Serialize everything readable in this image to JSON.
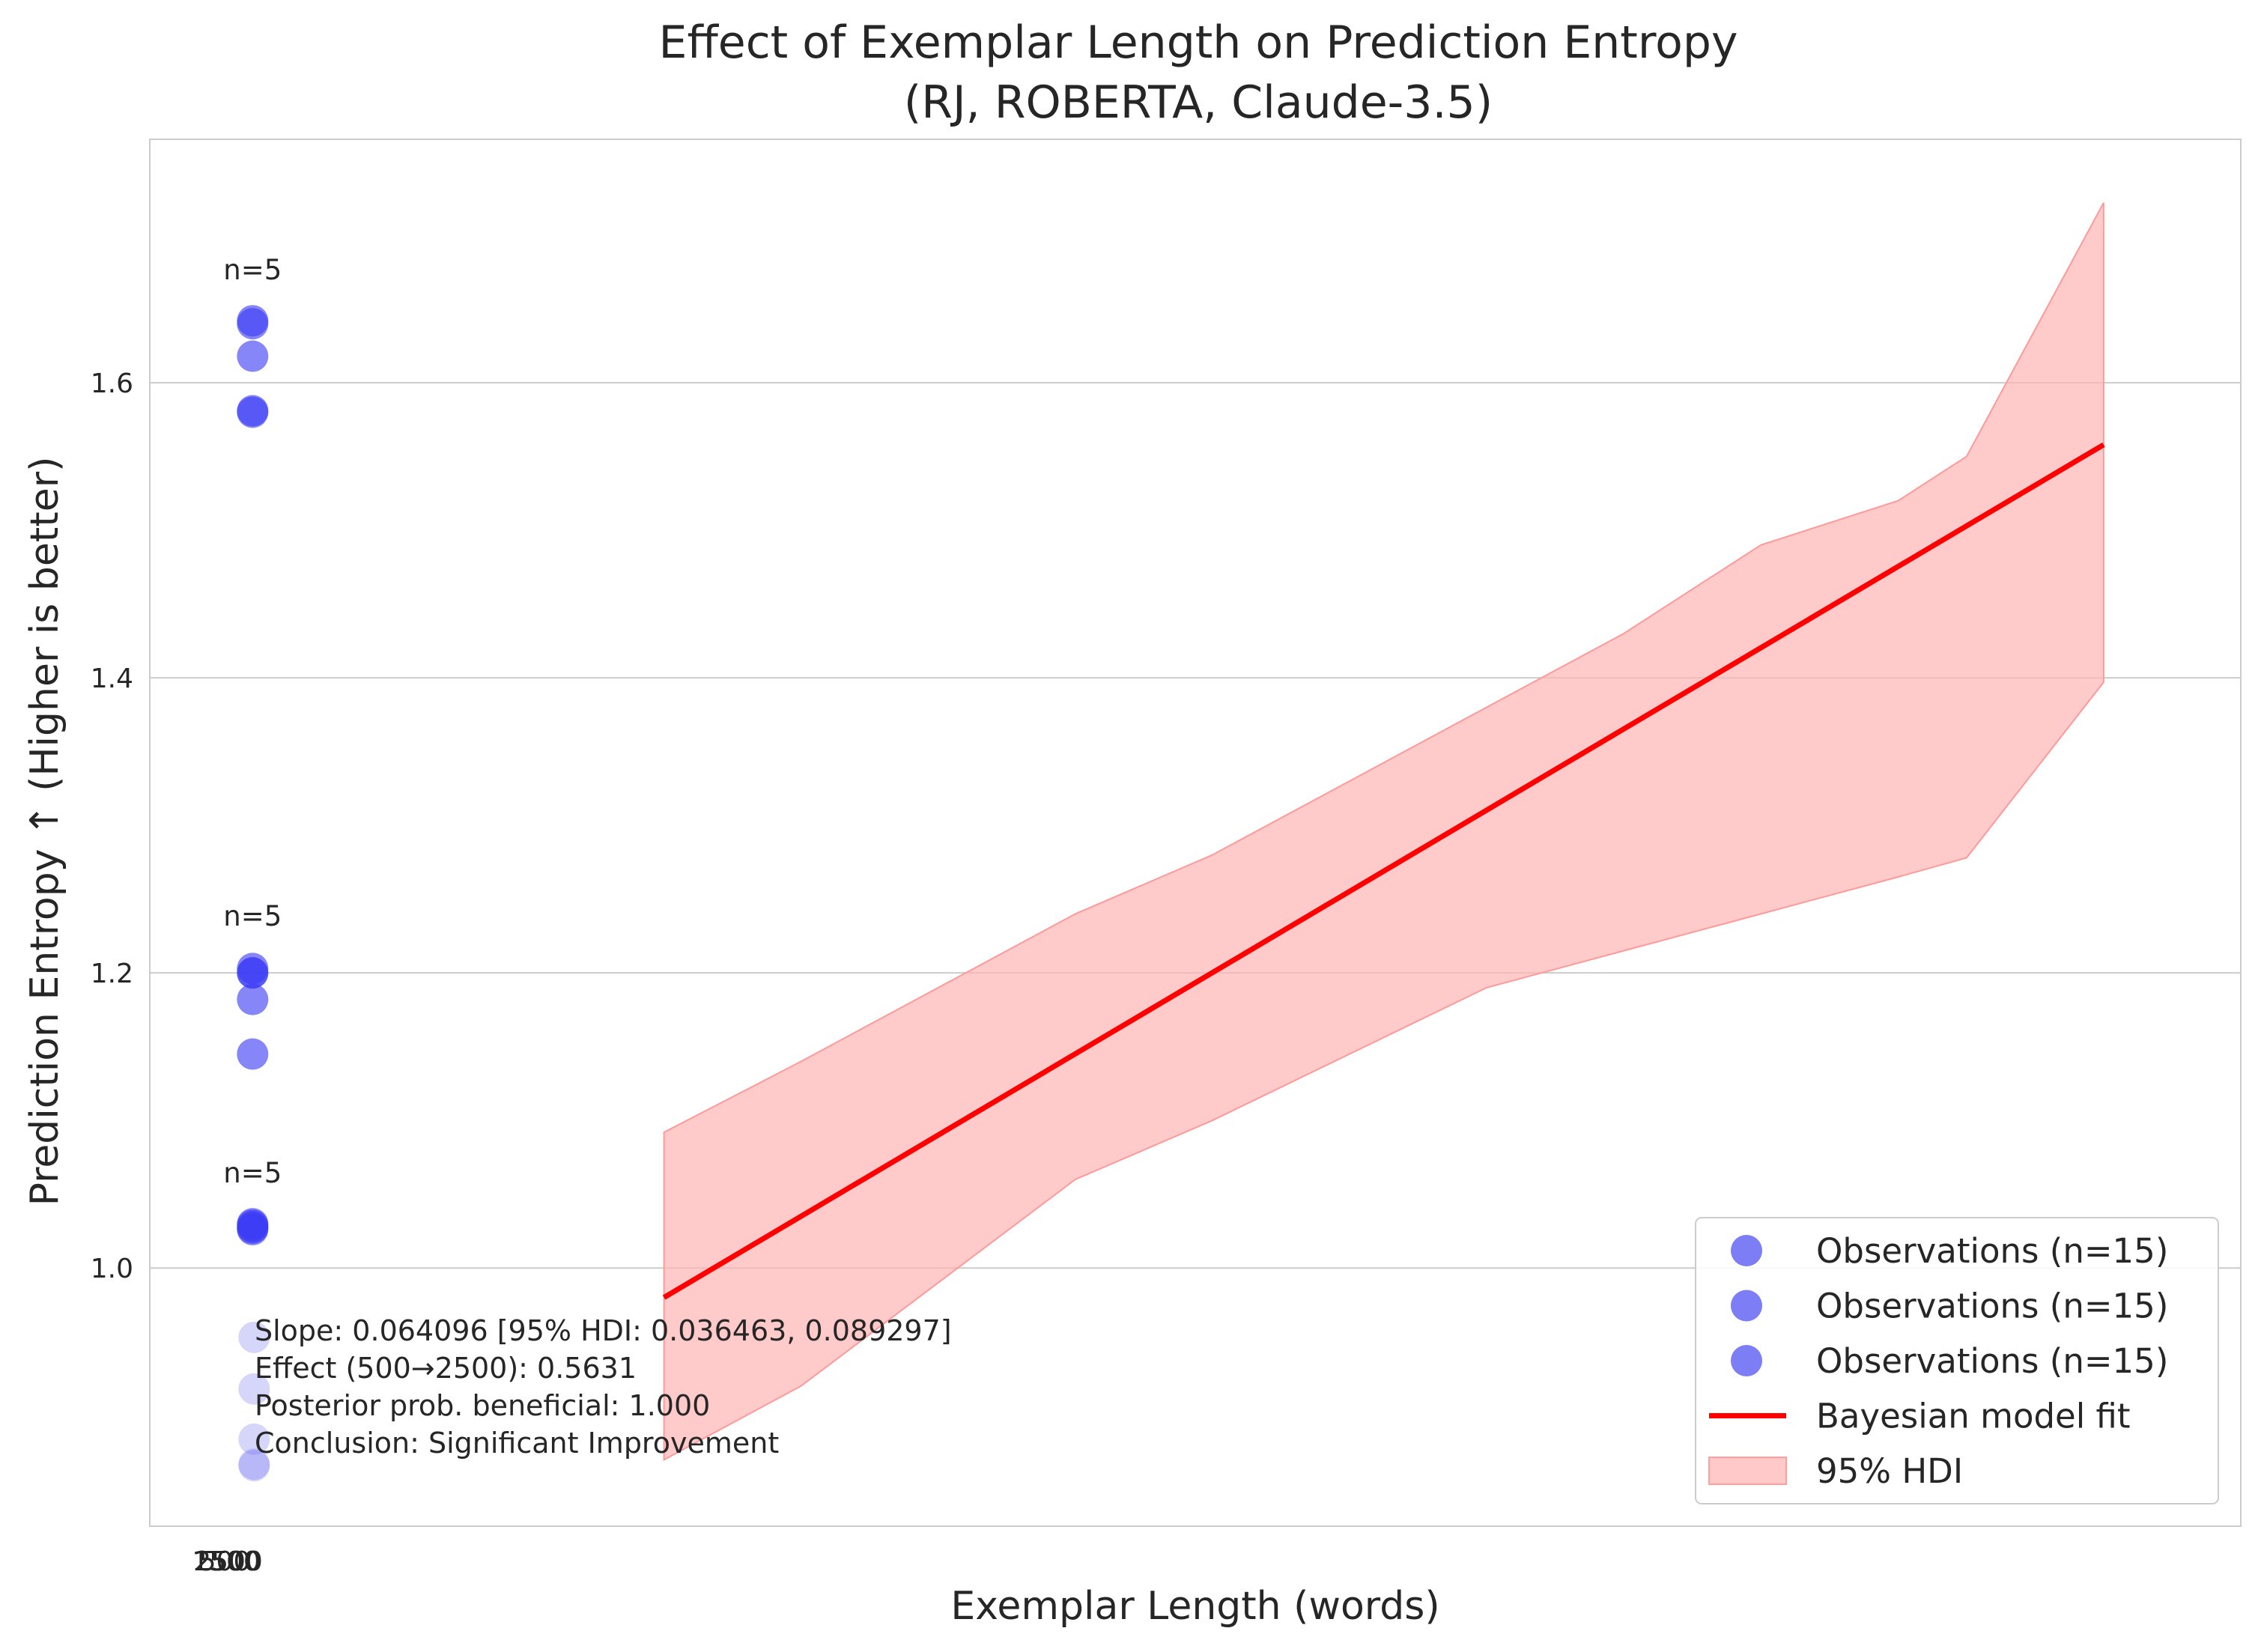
{
  "chart_data": {
    "type": "scatter",
    "title": "Effect of Exemplar Length on Prediction Entropy",
    "subtitle": "(RJ, ROBERTA, Claude-3.5)",
    "xlabel": "Exemplar Length (words)",
    "ylabel": "Prediction Entropy ↑ (Higher is better)",
    "xlim": [
      -1500,
      29000
    ],
    "ylim": [
      0.825,
      1.765
    ],
    "grid": "horizontal",
    "legend_position": "bottom-right",
    "x_ticks": [
      {
        "value": 500,
        "label": "500"
      },
      {
        "value": 1500,
        "label": "1500"
      },
      {
        "value": 2500,
        "label": "2500"
      }
    ],
    "y_ticks": [
      {
        "value": 1.0,
        "label": "1.0"
      },
      {
        "value": 1.2,
        "label": "1.2"
      },
      {
        "value": 1.4,
        "label": "1.4"
      },
      {
        "value": 1.6,
        "label": "1.6"
      }
    ],
    "series": [
      {
        "name": "Observations (n=15)",
        "type": "scatter",
        "x": [
          0,
          0,
          0,
          0,
          0
        ],
        "y": [
          1.642,
          1.64,
          1.618,
          1.581,
          1.58
        ],
        "color": "#3b3bf5",
        "light": false
      },
      {
        "name": "Observations (n=15)",
        "type": "scatter",
        "x": [
          0,
          0,
          0,
          0,
          0
        ],
        "y": [
          1.203,
          1.2,
          1.182,
          1.145,
          1.2
        ],
        "color": "#3b3bf5",
        "light": false
      },
      {
        "name": "Observations (n=15)",
        "type": "scatter",
        "x": [
          0,
          0,
          0,
          0,
          0
        ],
        "y": [
          1.03,
          1.026,
          1.029,
          1.028,
          1.027
        ],
        "color": "#3b3bf5",
        "light": false
      },
      {
        "name": "",
        "type": "scatter",
        "x": [
          0,
          0,
          0,
          0,
          0
        ],
        "y": [
          0.953,
          0.918,
          0.884,
          0.867,
          0.866
        ],
        "color": "#6a6af0",
        "light": true
      }
    ],
    "group_labels": [
      {
        "x": 0,
        "y": 1.67,
        "text": "n=5"
      },
      {
        "x": 0,
        "y": 1.232,
        "text": "n=5"
      },
      {
        "x": 0,
        "y": 1.058,
        "text": "n=5"
      }
    ],
    "fit": {
      "name": "Bayesian model fit",
      "color": "#ff0000",
      "x": [
        6000,
        27000
      ],
      "y": [
        0.98,
        1.558
      ]
    },
    "hdi": {
      "name": "95% HDI",
      "color": "#ffb3b3",
      "x": [
        6000,
        8000,
        10000,
        12000,
        14000,
        16000,
        18000,
        20000,
        22000,
        24000,
        25000,
        27000
      ],
      "upper": [
        1.092,
        1.14,
        1.19,
        1.24,
        1.28,
        1.33,
        1.38,
        1.43,
        1.49,
        1.52,
        1.55,
        1.722
      ],
      "lower": [
        0.87,
        0.92,
        0.99,
        1.06,
        1.1,
        1.145,
        1.19,
        1.215,
        1.24,
        1.265,
        1.278,
        1.397
      ]
    },
    "stats_text": [
      "Slope: 0.064096 [95% HDI: 0.036463, 0.089297]",
      "Effect (500→2500): 0.5631",
      "Posterior prob. beneficial: 1.000",
      "Conclusion: Significant Improvement"
    ],
    "legend": [
      {
        "label": "Observations (n=15)",
        "kind": "marker",
        "color": "#7d7df5"
      },
      {
        "label": "Observations (n=15)",
        "kind": "marker",
        "color": "#7d7df5"
      },
      {
        "label": "Observations (n=15)",
        "kind": "marker",
        "color": "#7d7df5"
      },
      {
        "label": "Bayesian model fit",
        "kind": "line",
        "color": "#ff0000"
      },
      {
        "label": "95% HDI",
        "kind": "patch",
        "color": "#ffc9c9"
      }
    ]
  }
}
